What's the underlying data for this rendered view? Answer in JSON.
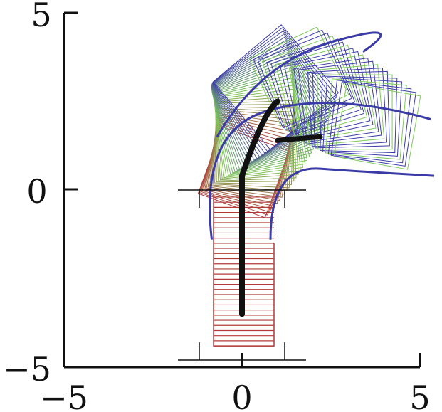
{
  "chart_data": {
    "type": "line",
    "title": "",
    "xlabel": "",
    "ylabel": "",
    "xlim": [
      -5,
      5
    ],
    "ylim": [
      -5,
      5
    ],
    "x_ticks": [
      "−5",
      "0",
      "5"
    ],
    "y_ticks": [
      "5",
      "0",
      "−5"
    ],
    "colors": {
      "red": "#b23a3a",
      "green": "#7ec95a",
      "blue": "#3b3ba8",
      "black": "#111111"
    },
    "trajectory": {
      "start": [
        0,
        -3.5
      ],
      "corner": [
        0,
        0.4
      ],
      "end": [
        2.2,
        1.5
      ]
    },
    "frames": {
      "straight_rect_count": 30,
      "rotating_square_count": 36,
      "outer_square_count": 22
    }
  }
}
